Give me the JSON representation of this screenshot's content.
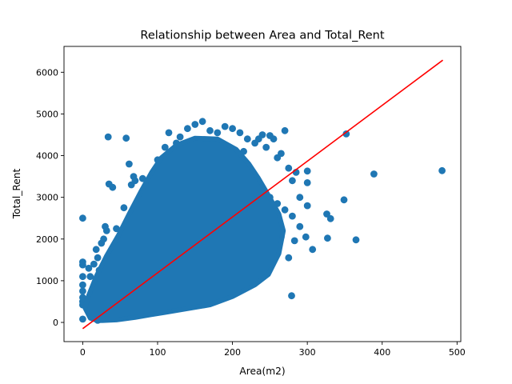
{
  "chart_data": {
    "type": "scatter",
    "title": "Relationship between Area and Total_Rent",
    "xlabel": "Area(m2)",
    "ylabel": "Total_Rent",
    "xlim": [
      -25,
      505
    ],
    "ylim": [
      -460,
      6620
    ],
    "xticks": [
      0,
      100,
      200,
      300,
      400,
      500
    ],
    "xtick_labels": [
      "0",
      "100",
      "200",
      "300",
      "400",
      "500"
    ],
    "yticks": [
      0,
      1000,
      2000,
      3000,
      4000,
      5000,
      6000
    ],
    "ytick_labels": [
      "0",
      "1000",
      "2000",
      "3000",
      "4000",
      "5000",
      "6000"
    ],
    "grid": false,
    "legend": "none",
    "series": [
      {
        "kind": "scatter",
        "color": "#1f77b4",
        "points": [
          [
            0,
            2500
          ],
          [
            0,
            1450
          ],
          [
            0,
            1380
          ],
          [
            0,
            1100
          ],
          [
            0,
            900
          ],
          [
            0,
            750
          ],
          [
            0,
            600
          ],
          [
            0,
            500
          ],
          [
            0,
            420
          ],
          [
            0,
            80
          ],
          [
            8,
            1300
          ],
          [
            10,
            1100
          ],
          [
            12,
            700
          ],
          [
            15,
            1400
          ],
          [
            18,
            1750
          ],
          [
            20,
            1550
          ],
          [
            22,
            1250
          ],
          [
            25,
            1900
          ],
          [
            28,
            2000
          ],
          [
            30,
            2300
          ],
          [
            32,
            2200
          ],
          [
            34,
            4450
          ],
          [
            35,
            3320
          ],
          [
            40,
            3240
          ],
          [
            45,
            2250
          ],
          [
            50,
            1300
          ],
          [
            55,
            2750
          ],
          [
            58,
            4420
          ],
          [
            62,
            3800
          ],
          [
            65,
            3300
          ],
          [
            68,
            3500
          ],
          [
            70,
            3400
          ],
          [
            80,
            3450
          ],
          [
            95,
            3500
          ],
          [
            100,
            3900
          ],
          [
            110,
            4200
          ],
          [
            115,
            4550
          ],
          [
            125,
            4300
          ],
          [
            130,
            4450
          ],
          [
            140,
            4650
          ],
          [
            150,
            4750
          ],
          [
            160,
            4820
          ],
          [
            170,
            4600
          ],
          [
            180,
            4550
          ],
          [
            190,
            4700
          ],
          [
            200,
            4650
          ],
          [
            210,
            4550
          ],
          [
            215,
            4100
          ],
          [
            220,
            4400
          ],
          [
            230,
            4300
          ],
          [
            235,
            4400
          ],
          [
            240,
            4500
          ],
          [
            245,
            4200
          ],
          [
            250,
            4480
          ],
          [
            255,
            4400
          ],
          [
            260,
            3950
          ],
          [
            265,
            4050
          ],
          [
            270,
            4600
          ],
          [
            275,
            3700
          ],
          [
            280,
            3400
          ],
          [
            285,
            3600
          ],
          [
            290,
            3000
          ],
          [
            240,
            3200
          ],
          [
            250,
            3000
          ],
          [
            260,
            2850
          ],
          [
            270,
            2700
          ],
          [
            280,
            2550
          ],
          [
            290,
            2300
          ],
          [
            300,
            2800
          ],
          [
            300,
            3350
          ],
          [
            300,
            3630
          ],
          [
            250,
            2100
          ],
          [
            255,
            1950
          ],
          [
            260,
            1850
          ],
          [
            265,
            2050
          ],
          [
            275,
            1550
          ],
          [
            283,
            1960
          ],
          [
            298,
            2050
          ],
          [
            307,
            1750
          ],
          [
            327,
            2020
          ],
          [
            326,
            2600
          ],
          [
            331,
            2490
          ],
          [
            349,
            2940
          ],
          [
            352,
            4520
          ],
          [
            365,
            1980
          ],
          [
            389,
            3560
          ],
          [
            480,
            3640
          ],
          [
            279,
            640
          ],
          [
            240,
            1250
          ],
          [
            230,
            1150
          ],
          [
            220,
            1350
          ],
          [
            210,
            1250
          ],
          [
            200,
            1100
          ],
          [
            190,
            1150
          ],
          [
            180,
            1200
          ],
          [
            170,
            900
          ],
          [
            160,
            850
          ],
          [
            150,
            750
          ],
          [
            140,
            650
          ],
          [
            130,
            550
          ],
          [
            120,
            450
          ],
          [
            110,
            400
          ],
          [
            100,
            350
          ],
          [
            90,
            300
          ],
          [
            80,
            250
          ],
          [
            70,
            200
          ],
          [
            60,
            150
          ],
          [
            50,
            150
          ],
          [
            40,
            100
          ],
          [
            30,
            100
          ],
          [
            20,
            50
          ]
        ]
      },
      {
        "kind": "line",
        "color": "#ff0000",
        "name": "fit",
        "points": [
          [
            0,
            -150
          ],
          [
            481,
            6290
          ]
        ]
      }
    ]
  }
}
